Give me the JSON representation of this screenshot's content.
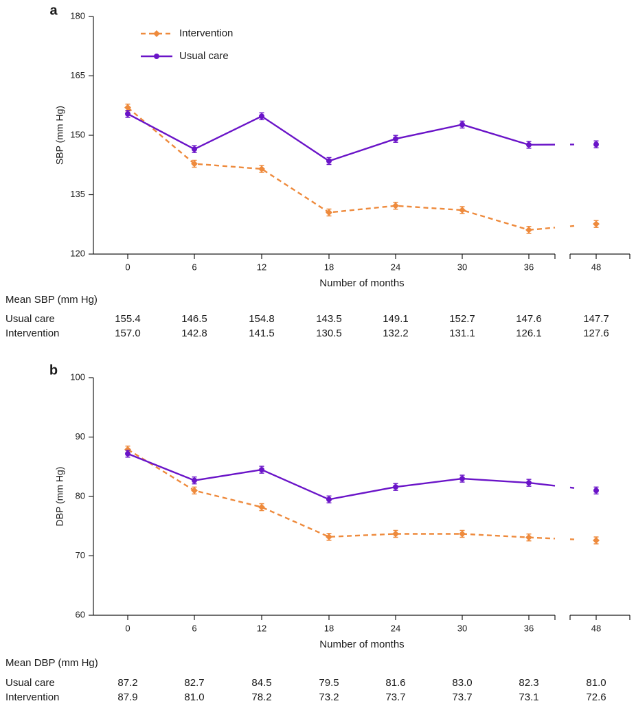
{
  "colors": {
    "intervention": "#EE8A3C",
    "usual_care": "#6A14C8",
    "axis": "#1a1a1a"
  },
  "chart_data": [
    {
      "type": "line",
      "panel_label": "a",
      "ylabel": "SBP (mm Hg)",
      "xlabel": "Number of months",
      "ylim": [
        120,
        180
      ],
      "yticks": [
        120,
        135,
        150,
        165,
        180
      ],
      "x": [
        0,
        6,
        12,
        18,
        24,
        30,
        36,
        48
      ],
      "x_axis_break": "between 36 and 48",
      "legend": {
        "placement": "top-left"
      },
      "series": [
        {
          "name": "Intervention",
          "style": "dashed",
          "color": "#EE8A3C",
          "values": [
            157.0,
            142.8,
            141.5,
            130.5,
            132.2,
            131.1,
            126.1,
            127.6
          ]
        },
        {
          "name": "Usual care",
          "style": "solid",
          "color": "#6A14C8",
          "values": [
            155.4,
            146.5,
            154.8,
            143.5,
            149.1,
            152.7,
            147.6,
            147.7
          ]
        }
      ],
      "table": {
        "heading": "Mean SBP (mm Hg)",
        "rows": [
          {
            "label": "Usual care",
            "values": [
              "155.4",
              "146.5",
              "154.8",
              "143.5",
              "149.1",
              "152.7",
              "147.6",
              "147.7"
            ]
          },
          {
            "label": "Intervention",
            "values": [
              "157.0",
              "142.8",
              "141.5",
              "130.5",
              "132.2",
              "131.1",
              "126.1",
              "127.6"
            ]
          }
        ]
      }
    },
    {
      "type": "line",
      "panel_label": "b",
      "ylabel": "DBP (mm Hg)",
      "xlabel": "Number of months",
      "ylim": [
        60,
        100
      ],
      "yticks": [
        60,
        70,
        80,
        90,
        100
      ],
      "x": [
        0,
        6,
        12,
        18,
        24,
        30,
        36,
        48
      ],
      "x_axis_break": "between 36 and 48",
      "series": [
        {
          "name": "Intervention",
          "style": "dashed",
          "color": "#EE8A3C",
          "values": [
            87.9,
            81.0,
            78.2,
            73.2,
            73.7,
            73.7,
            73.1,
            72.6
          ]
        },
        {
          "name": "Usual care",
          "style": "solid",
          "color": "#6A14C8",
          "values": [
            87.2,
            82.7,
            84.5,
            79.5,
            81.6,
            83.0,
            82.3,
            81.0
          ]
        }
      ],
      "table": {
        "heading": "Mean DBP (mm Hg)",
        "rows": [
          {
            "label": "Usual care",
            "values": [
              "87.2",
              "82.7",
              "84.5",
              "79.5",
              "81.6",
              "83.0",
              "82.3",
              "81.0"
            ]
          },
          {
            "label": "Intervention",
            "values": [
              "87.9",
              "81.0",
              "78.2",
              "73.2",
              "73.7",
              "73.7",
              "73.1",
              "72.6"
            ]
          }
        ]
      }
    }
  ]
}
